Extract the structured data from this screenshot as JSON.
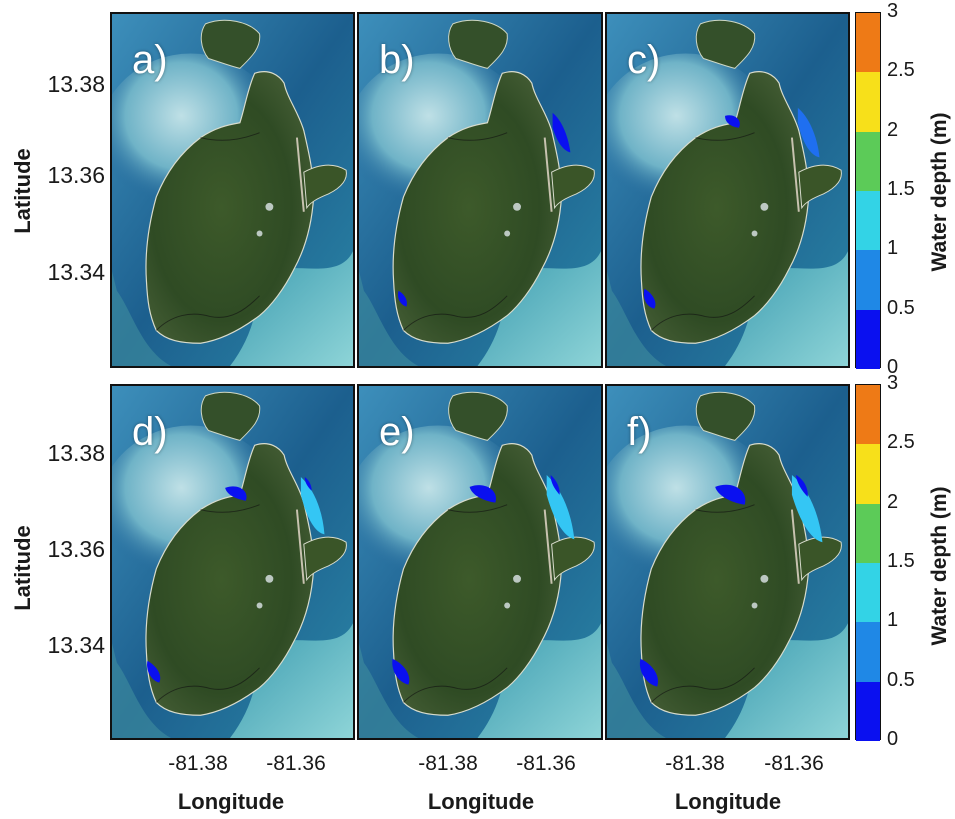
{
  "figure": {
    "panel_labels": [
      "a)",
      "b)",
      "c)",
      "d)",
      "e)",
      "f)"
    ],
    "y_axis_label": "Latitude",
    "x_axis_label": "Longitude",
    "y_ticks": [
      "13.38",
      "13.36",
      "13.34"
    ],
    "x_ticks": [
      "-81.38",
      "-81.36"
    ],
    "colorbar": {
      "label": "Water depth (m)",
      "ticks": [
        "3",
        "2.5",
        "2",
        "1.5",
        "1",
        "0.5",
        "0"
      ],
      "colors": [
        "#ee7a16",
        "#f7e01a",
        "#5ccb58",
        "#33d3e6",
        "#1f88e6",
        "#0a10f0"
      ]
    },
    "flood_color_light": "#34c6f4",
    "flood_color_dark": "#0a10f0"
  }
}
